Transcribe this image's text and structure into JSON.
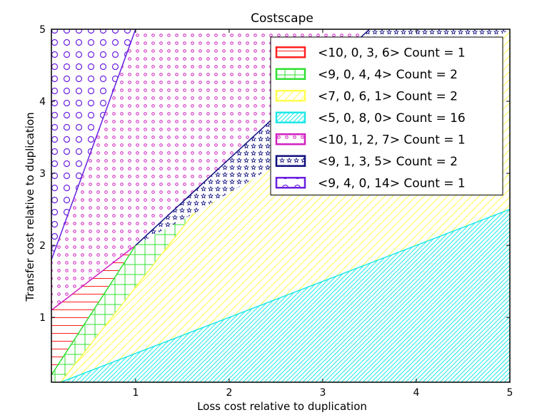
{
  "chart_data": {
    "type": "area",
    "title": "Costscape",
    "xlabel": "Loss cost relative to duplication",
    "ylabel": "Transfer cost relative to duplication",
    "xlim": [
      0.1,
      5
    ],
    "ylim": [
      0.1,
      5
    ],
    "x_ticks": [
      1,
      2,
      3,
      4,
      5
    ],
    "y_ticks": [
      1,
      2,
      3,
      4,
      5
    ],
    "legend_position": "top-right",
    "regions": [
      {
        "label": "<10, 0, 3, 6> Count = 1",
        "color": "#ff2020",
        "hatch": "horizontal-lines",
        "polygon": [
          [
            0.1,
            0.1
          ],
          [
            0.1,
            1.1
          ],
          [
            1.0,
            2.0
          ],
          [
            0.1,
            0.2
          ]
        ]
      },
      {
        "label": "<9, 0, 4, 4> Count = 2",
        "color": "#30e030",
        "hatch": "grid",
        "polygon": [
          [
            0.1,
            0.2
          ],
          [
            1.0,
            2.0
          ],
          [
            1.62,
            2.44
          ],
          [
            0.2,
            0.1
          ],
          [
            0.1,
            0.1
          ]
        ]
      },
      {
        "label": "<7, 0, 6, 1> Count = 2",
        "color": "#ffff50",
        "hatch": "diagonal-lines",
        "polygon": [
          [
            0.2,
            0.1
          ],
          [
            1.62,
            2.44
          ],
          [
            5,
            5
          ],
          [
            5,
            2.5
          ],
          [
            0.2,
            0.1
          ]
        ]
      },
      {
        "label": "<5, 0, 8, 0> Count = 16",
        "color": "#20e8e8",
        "hatch": "dense-diagonal-lines",
        "polygon": [
          [
            0.2,
            0.1
          ],
          [
            5,
            2.5
          ],
          [
            5,
            0.1
          ]
        ]
      },
      {
        "label": "<10, 1, 2, 7> Count = 1",
        "color": "#d020c0",
        "hatch": "small-circles",
        "polygon": [
          [
            0.1,
            1.1
          ],
          [
            1.0,
            2.0
          ],
          [
            3.5,
            5
          ],
          [
            1.0,
            5
          ],
          [
            0.1,
            1.8
          ]
        ]
      },
      {
        "label": "<9, 1, 3, 5> Count = 2",
        "color": "#101080",
        "hatch": "stars",
        "polygon": [
          [
            1.0,
            2.0
          ],
          [
            1.62,
            2.44
          ],
          [
            5,
            5
          ],
          [
            3.5,
            5
          ]
        ]
      },
      {
        "label": "<9, 4, 0, 14> Count = 1",
        "color": "#6a20e0",
        "hatch": "large-circles",
        "polygon": [
          [
            0.1,
            1.8
          ],
          [
            1.0,
            5
          ],
          [
            0.1,
            5
          ]
        ]
      }
    ],
    "boundaries": [
      {
        "color": "#d020c0",
        "points": [
          [
            0.1,
            1.1
          ],
          [
            1.0,
            2.0
          ]
        ]
      },
      {
        "color": "#30e030",
        "points": [
          [
            0.1,
            0.2
          ],
          [
            1.0,
            2.0
          ]
        ]
      },
      {
        "color": "#ffff50",
        "points": [
          [
            0.2,
            0.1
          ],
          [
            1.62,
            2.44
          ]
        ]
      },
      {
        "color": "#20e8e8",
        "points": [
          [
            0.2,
            0.1
          ],
          [
            5,
            2.5
          ]
        ]
      },
      {
        "color": "#101080",
        "points": [
          [
            1.0,
            2.0
          ],
          [
            3.5,
            5
          ]
        ]
      },
      {
        "color": "#6a20e0",
        "points": [
          [
            0.1,
            1.8
          ],
          [
            1.0,
            5
          ]
        ]
      }
    ]
  }
}
